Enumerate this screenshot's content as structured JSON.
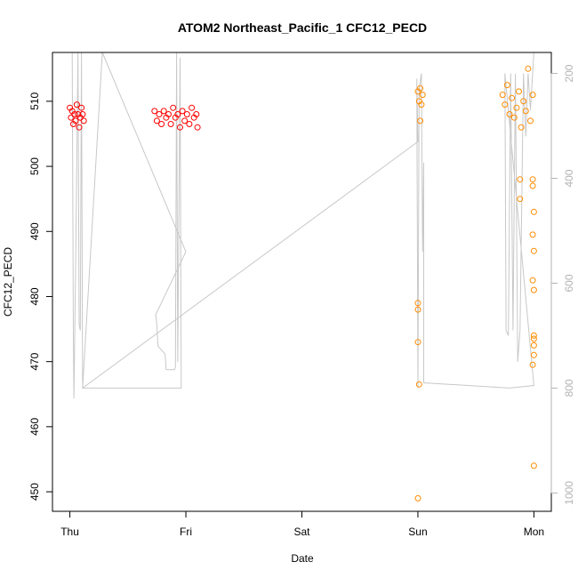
{
  "chart_data": {
    "type": "scatter",
    "title": "ATOM2 Northeast_Pacific_1 CFC12_PECD",
    "xlabel": "Date",
    "ylabel": "CFC12_PECD",
    "x_ticks": [
      "Thu",
      "Fri",
      "Sat",
      "Sun",
      "Mon"
    ],
    "xlim_days": [
      -0.15,
      4.15
    ],
    "ylim": [
      447,
      517.5
    ],
    "y_ticks": [
      450,
      460,
      470,
      480,
      490,
      500,
      510
    ],
    "y2_ticks": [
      200,
      400,
      600,
      800,
      1000
    ],
    "y2lim": [
      160,
      1035
    ],
    "y2_reversed": true,
    "grid": false,
    "colors": {
      "series1": "#ff0000",
      "series2": "#ff8c00",
      "depth_line": "#c8c8c8"
    },
    "series": [
      {
        "points": [
          [
            0.0,
            509.0
          ],
          [
            0.01,
            507.5
          ],
          [
            0.02,
            508.5
          ],
          [
            0.03,
            506.5
          ],
          [
            0.04,
            508.0
          ],
          [
            0.05,
            507.0
          ],
          [
            0.06,
            509.5
          ],
          [
            0.07,
            508.0
          ],
          [
            0.08,
            506.0
          ],
          [
            0.09,
            507.5
          ],
          [
            0.1,
            509.0
          ],
          [
            0.11,
            508.0
          ],
          [
            0.12,
            507.0
          ],
          [
            0.73,
            508.5
          ],
          [
            0.75,
            507.0
          ],
          [
            0.77,
            508.0
          ],
          [
            0.79,
            506.5
          ],
          [
            0.81,
            508.5
          ],
          [
            0.83,
            507.5
          ],
          [
            0.85,
            508.0
          ],
          [
            0.87,
            506.5
          ],
          [
            0.89,
            509.0
          ],
          [
            0.91,
            507.5
          ],
          [
            0.93,
            508.0
          ],
          [
            0.95,
            506.0
          ],
          [
            0.97,
            508.5
          ],
          [
            0.99,
            507.0
          ],
          [
            1.01,
            508.0
          ],
          [
            1.03,
            506.5
          ],
          [
            1.05,
            509.0
          ],
          [
            1.07,
            507.5
          ],
          [
            1.09,
            508.0
          ],
          [
            1.1,
            506.0
          ]
        ]
      },
      {
        "points": [
          [
            3.0,
            511.5
          ],
          [
            3.01,
            510.0
          ],
          [
            3.02,
            512.0
          ],
          [
            3.03,
            509.5
          ],
          [
            3.04,
            511.0
          ],
          [
            3.02,
            507.0
          ],
          [
            3.0,
            479.0
          ],
          [
            3.0,
            478.0
          ],
          [
            3.0,
            473.0
          ],
          [
            3.01,
            466.5
          ],
          [
            3.0,
            449.0
          ],
          [
            3.73,
            511.0
          ],
          [
            3.75,
            509.5
          ],
          [
            3.77,
            512.5
          ],
          [
            3.79,
            508.0
          ],
          [
            3.81,
            510.5
          ],
          [
            3.83,
            507.5
          ],
          [
            3.85,
            509.0
          ],
          [
            3.87,
            511.5
          ],
          [
            3.89,
            506.0
          ],
          [
            3.91,
            510.0
          ],
          [
            3.93,
            508.5
          ],
          [
            3.95,
            515.0
          ],
          [
            3.97,
            507.0
          ],
          [
            3.99,
            511.0
          ],
          [
            3.88,
            498.0
          ],
          [
            3.88,
            495.0
          ],
          [
            3.99,
            498.0
          ],
          [
            3.99,
            497.0
          ],
          [
            4.0,
            493.0
          ],
          [
            3.99,
            489.5
          ],
          [
            4.0,
            487.0
          ],
          [
            3.99,
            482.5
          ],
          [
            4.0,
            481.0
          ],
          [
            4.0,
            474.0
          ],
          [
            4.0,
            473.5
          ],
          [
            4.0,
            472.5
          ],
          [
            4.0,
            471.0
          ],
          [
            3.99,
            469.5
          ],
          [
            4.0,
            454.0
          ]
        ]
      }
    ],
    "depth_line": [
      [
        0.02,
        160
      ],
      [
        0.03,
        700
      ],
      [
        0.035,
        820
      ],
      [
        0.05,
        560
      ],
      [
        0.07,
        160
      ],
      [
        0.08,
        680
      ],
      [
        0.09,
        690
      ],
      [
        0.1,
        160
      ],
      [
        0.11,
        800
      ],
      [
        0.28,
        160
      ],
      [
        1.0,
        540
      ],
      [
        0.74,
        660
      ],
      [
        0.75,
        680
      ],
      [
        0.76,
        720
      ],
      [
        0.82,
        735
      ],
      [
        0.83,
        765
      ],
      [
        0.9,
        765
      ],
      [
        0.91,
        760
      ],
      [
        0.92,
        160
      ],
      [
        0.93,
        750
      ],
      [
        0.95,
        170
      ],
      [
        0.96,
        800
      ],
      [
        0.11,
        800
      ],
      [
        3.0,
        330
      ],
      [
        2.99,
        210
      ],
      [
        3.0,
        800
      ],
      [
        3.01,
        230
      ],
      [
        3.03,
        200
      ],
      [
        3.04,
        540
      ],
      [
        3.05,
        370
      ],
      [
        3.05,
        790
      ],
      [
        3.79,
        800
      ],
      [
        4.0,
        795
      ],
      [
        3.75,
        200
      ],
      [
        3.76,
        690
      ],
      [
        3.78,
        700
      ],
      [
        3.8,
        200
      ],
      [
        3.82,
        690
      ],
      [
        3.84,
        200
      ],
      [
        3.86,
        750
      ],
      [
        3.88,
        690
      ],
      [
        3.91,
        200
      ],
      [
        3.93,
        320
      ],
      [
        3.95,
        200
      ],
      [
        3.97,
        270
      ],
      [
        4.0,
        160
      ]
    ]
  }
}
